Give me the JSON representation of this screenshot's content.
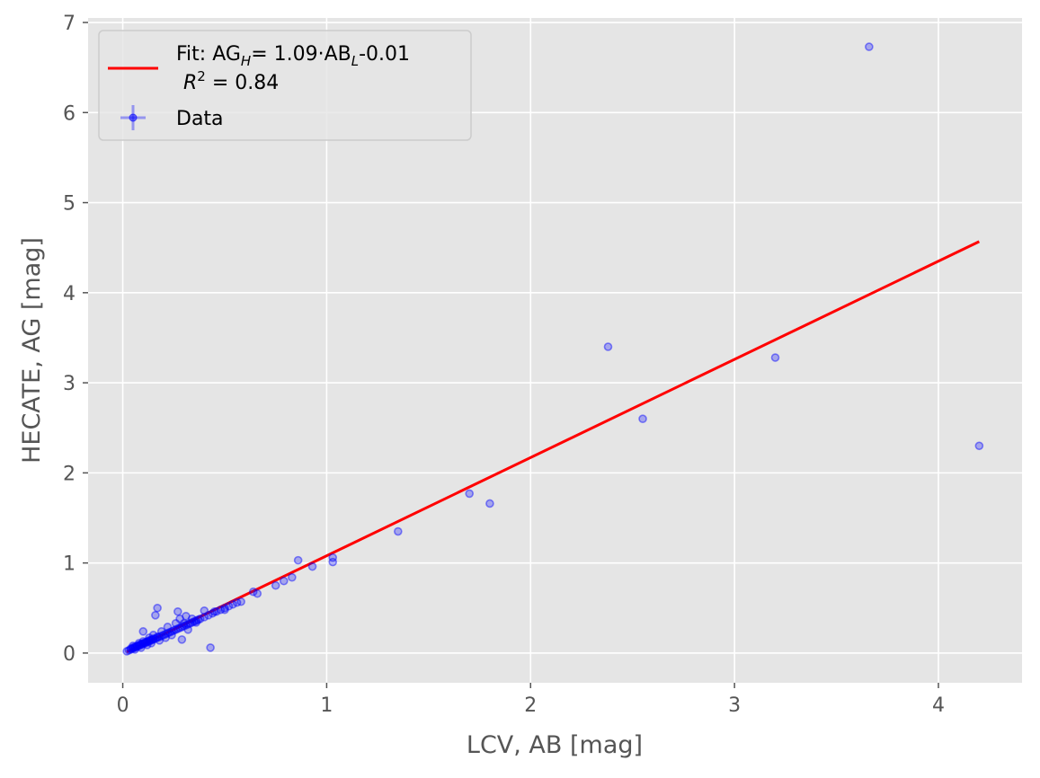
{
  "chart_data": {
    "type": "scatter",
    "xlabel": "LCV, AB [mag]",
    "ylabel": "HECATE, AG [mag]",
    "xlim": [
      -0.17,
      4.41
    ],
    "ylim": [
      -0.33,
      7.05
    ],
    "x_ticks": [
      0,
      1,
      2,
      3,
      4
    ],
    "y_ticks": [
      0,
      1,
      2,
      3,
      4,
      5,
      6,
      7
    ],
    "x_tick_labels": [
      "0",
      "1",
      "2",
      "3",
      "4"
    ],
    "y_tick_labels": [
      "0",
      "1",
      "2",
      "3",
      "4",
      "5",
      "6",
      "7"
    ],
    "grid": true,
    "legend_placement": "top-left",
    "legend": {
      "fit_label_line1": "Fit: AG",
      "fit_label_sub1": "H",
      "fit_label_mid": "= 1.09·AB",
      "fit_label_sub2": "L",
      "fit_label_end": "-0.01",
      "fit_label_line2_r": "R",
      "fit_label_line2_sup": "2",
      "fit_label_line2_rest": " =  0.84",
      "data_label": "Data"
    },
    "colors": {
      "background": "#e5e5e5",
      "grid": "#ffffff",
      "data": "#0000ff",
      "fit_line": "#ff0000",
      "tick_text": "#555555",
      "label_text": "#555555"
    },
    "fit": {
      "slope": 1.09,
      "intercept": -0.01,
      "x_range": [
        0.02,
        4.2
      ]
    },
    "series": [
      {
        "name": "Data",
        "points": [
          [
            0.02,
            0.02
          ],
          [
            0.03,
            0.03
          ],
          [
            0.04,
            0.04
          ],
          [
            0.04,
            0.05
          ],
          [
            0.05,
            0.05
          ],
          [
            0.05,
            0.06
          ],
          [
            0.06,
            0.06
          ],
          [
            0.06,
            0.07
          ],
          [
            0.07,
            0.07
          ],
          [
            0.07,
            0.08
          ],
          [
            0.08,
            0.08
          ],
          [
            0.08,
            0.09
          ],
          [
            0.09,
            0.09
          ],
          [
            0.09,
            0.1
          ],
          [
            0.1,
            0.1
          ],
          [
            0.1,
            0.11
          ],
          [
            0.11,
            0.11
          ],
          [
            0.11,
            0.12
          ],
          [
            0.12,
            0.12
          ],
          [
            0.12,
            0.13
          ],
          [
            0.13,
            0.13
          ],
          [
            0.13,
            0.14
          ],
          [
            0.14,
            0.14
          ],
          [
            0.14,
            0.15
          ],
          [
            0.15,
            0.15
          ],
          [
            0.15,
            0.16
          ],
          [
            0.16,
            0.16
          ],
          [
            0.17,
            0.17
          ],
          [
            0.17,
            0.18
          ],
          [
            0.18,
            0.18
          ],
          [
            0.19,
            0.19
          ],
          [
            0.2,
            0.2
          ],
          [
            0.21,
            0.21
          ],
          [
            0.22,
            0.22
          ],
          [
            0.23,
            0.23
          ],
          [
            0.24,
            0.24
          ],
          [
            0.25,
            0.25
          ],
          [
            0.26,
            0.26
          ],
          [
            0.27,
            0.27
          ],
          [
            0.28,
            0.28
          ],
          [
            0.29,
            0.29
          ],
          [
            0.3,
            0.3
          ],
          [
            0.31,
            0.31
          ],
          [
            0.32,
            0.32
          ],
          [
            0.33,
            0.33
          ],
          [
            0.34,
            0.34
          ],
          [
            0.35,
            0.35
          ],
          [
            0.36,
            0.36
          ],
          [
            0.37,
            0.37
          ],
          [
            0.38,
            0.38
          ],
          [
            0.4,
            0.4
          ],
          [
            0.42,
            0.42
          ],
          [
            0.44,
            0.44
          ],
          [
            0.46,
            0.46
          ],
          [
            0.48,
            0.48
          ],
          [
            0.5,
            0.5
          ],
          [
            0.52,
            0.52
          ],
          [
            0.54,
            0.54
          ],
          [
            0.56,
            0.56
          ],
          [
            0.58,
            0.57
          ],
          [
            0.05,
            0.08
          ],
          [
            0.06,
            0.04
          ],
          [
            0.08,
            0.11
          ],
          [
            0.09,
            0.06
          ],
          [
            0.1,
            0.13
          ],
          [
            0.1,
            0.24
          ],
          [
            0.12,
            0.09
          ],
          [
            0.13,
            0.17
          ],
          [
            0.14,
            0.11
          ],
          [
            0.15,
            0.2
          ],
          [
            0.16,
            0.42
          ],
          [
            0.17,
            0.5
          ],
          [
            0.18,
            0.14
          ],
          [
            0.19,
            0.24
          ],
          [
            0.21,
            0.17
          ],
          [
            0.22,
            0.29
          ],
          [
            0.24,
            0.2
          ],
          [
            0.26,
            0.33
          ],
          [
            0.27,
            0.46
          ],
          [
            0.28,
            0.38
          ],
          [
            0.29,
            0.15
          ],
          [
            0.3,
            0.33
          ],
          [
            0.31,
            0.41
          ],
          [
            0.32,
            0.26
          ],
          [
            0.34,
            0.38
          ],
          [
            0.36,
            0.34
          ],
          [
            0.4,
            0.47
          ],
          [
            0.43,
            0.06
          ],
          [
            0.45,
            0.46
          ],
          [
            0.5,
            0.48
          ],
          [
            0.64,
            0.68
          ],
          [
            0.66,
            0.66
          ],
          [
            0.75,
            0.75
          ],
          [
            0.79,
            0.8
          ],
          [
            0.83,
            0.84
          ],
          [
            0.86,
            1.03
          ],
          [
            0.93,
            0.96
          ],
          [
            1.03,
            1.06
          ],
          [
            1.03,
            1.01
          ],
          [
            1.35,
            1.35
          ],
          [
            1.7,
            1.77
          ],
          [
            1.8,
            1.66
          ],
          [
            2.38,
            3.4
          ],
          [
            2.55,
            2.6
          ],
          [
            3.2,
            3.28
          ],
          [
            3.66,
            6.73
          ],
          [
            4.2,
            2.3
          ]
        ]
      }
    ]
  }
}
